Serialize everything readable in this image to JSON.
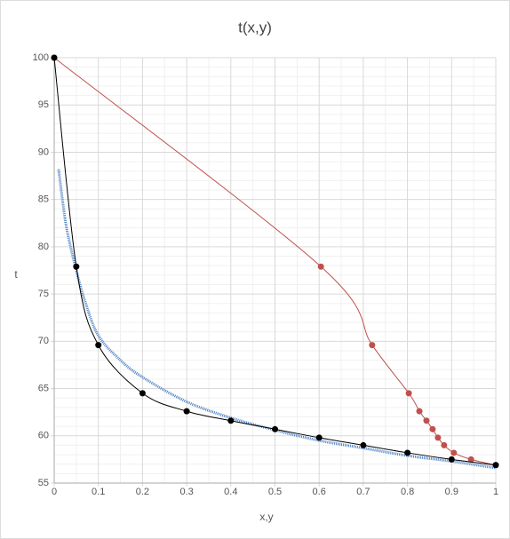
{
  "chart_data": {
    "type": "line",
    "title": "t(x,y)",
    "x_label": "x,y",
    "y_label": "t",
    "xlim": [
      0,
      1
    ],
    "xticks": [
      0,
      0.1,
      0.2,
      0.3,
      0.4,
      0.5,
      0.6,
      0.7,
      0.8,
      0.9,
      1
    ],
    "ylim": [
      55,
      100
    ],
    "yticks": [
      55,
      60,
      65,
      70,
      75,
      80,
      85,
      90,
      95,
      100
    ],
    "grid": true,
    "minor_grid": true,
    "series": [
      {
        "color": "#4a80c4",
        "style": "dotted",
        "markers": false,
        "x": [
          0.01,
          0.02,
          0.03,
          0.05,
          0.07,
          0.1,
          0.15,
          0.2,
          0.3,
          0.4,
          0.5,
          0.6,
          0.7,
          0.8,
          0.9,
          1
        ],
        "values": [
          88.2,
          84.5,
          81.5,
          77.5,
          74.2,
          70.6,
          68,
          66.2,
          63.6,
          61.9,
          60.6,
          59.5,
          58.7,
          57.9,
          57.3,
          56.6
        ]
      },
      {
        "color": "#c0504d",
        "style": "solid",
        "markers": true,
        "x": [
          0,
          0.604,
          0.72,
          0.803,
          0.827,
          0.843,
          0.857,
          0.869,
          0.883,
          0.905,
          0.944,
          1
        ],
        "values": [
          100,
          77.9,
          69.6,
          64.5,
          62.6,
          61.6,
          60.7,
          59.8,
          59.0,
          58.2,
          57.5,
          56.9
        ]
      },
      {
        "color": "#000000",
        "style": "solid",
        "markers": true,
        "x": [
          0,
          0.05,
          0.1,
          0.2,
          0.3,
          0.4,
          0.5,
          0.6,
          0.7,
          0.8,
          0.9,
          1
        ],
        "values": [
          100,
          77.9,
          69.6,
          64.5,
          62.6,
          61.6,
          60.7,
          59.8,
          59.0,
          58.2,
          57.5,
          56.9
        ]
      }
    ]
  }
}
